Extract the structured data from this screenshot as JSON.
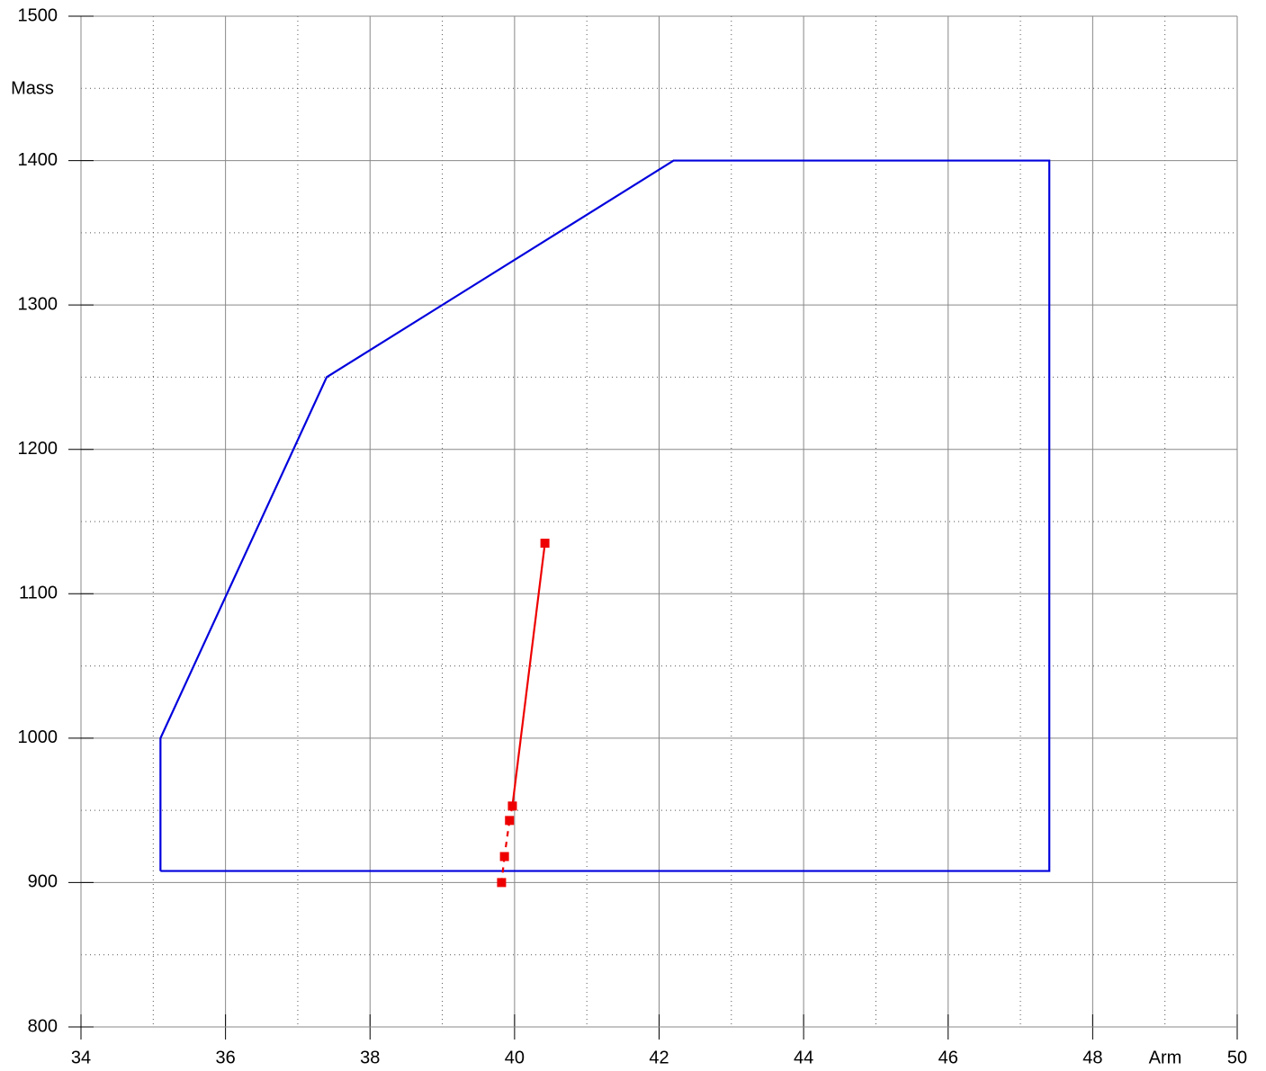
{
  "chart_data": {
    "type": "line",
    "xlabel": "Arm",
    "ylabel": "Mass",
    "xlim": [
      34,
      50
    ],
    "ylim": [
      800,
      1500
    ],
    "xticks": [
      34,
      36,
      38,
      40,
      42,
      44,
      46,
      48,
      50
    ],
    "yticks": [
      800,
      900,
      1000,
      1100,
      1200,
      1300,
      1400,
      1500
    ],
    "xminor": [
      35,
      37,
      39,
      41,
      43,
      45,
      47,
      49
    ],
    "yminor": [
      850,
      950,
      1050,
      1150,
      1250,
      1350,
      1450
    ],
    "grid": true,
    "envelope": {
      "color": "#0000dd",
      "x": [
        35.1,
        35.1,
        37.4,
        42.2,
        47.4,
        47.4,
        35.1
      ],
      "values": [
        908,
        1000,
        1250,
        1400,
        1400,
        908,
        908
      ]
    },
    "series": [
      {
        "color": "#ee0000",
        "x": [
          40.42,
          39.97,
          39.93,
          39.86,
          39.82
        ],
        "values": [
          1135,
          953,
          943,
          918,
          900
        ],
        "segment_styles": [
          "solid",
          "dashed",
          "dashed",
          "dashed"
        ]
      }
    ]
  }
}
